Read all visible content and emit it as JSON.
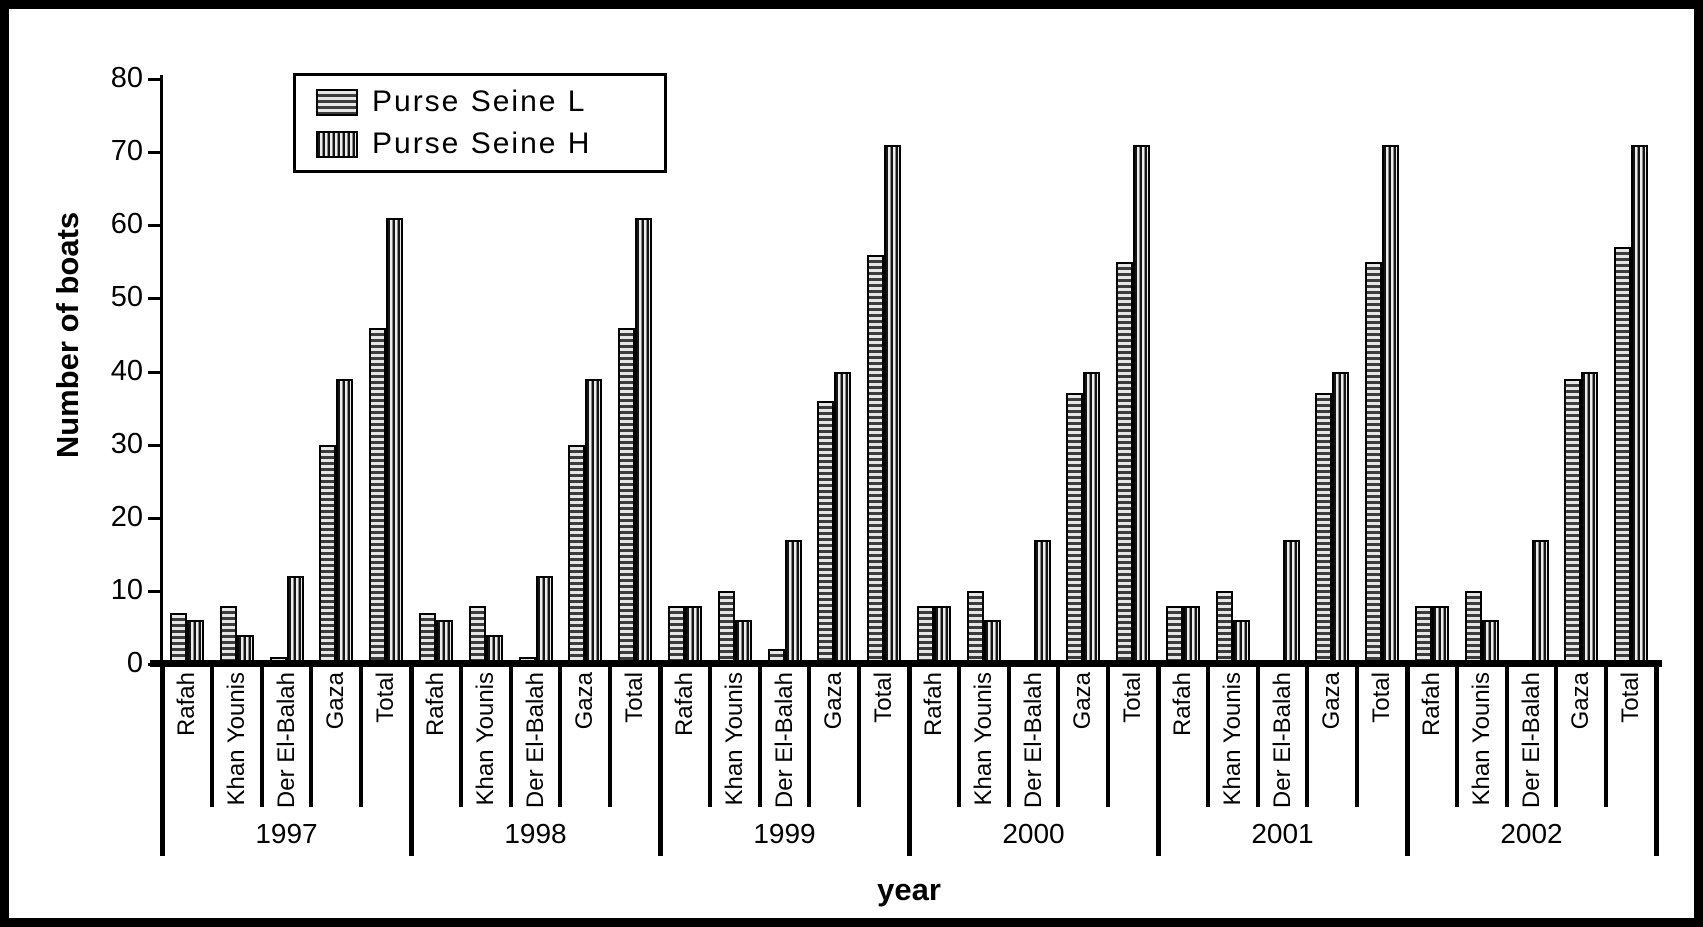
{
  "frame": {
    "background": "#ffffff",
    "border_color": "#000000",
    "bar_dark": "#3c3c3c",
    "bar_light": "#e6e6e6"
  },
  "chart_data": {
    "type": "bar",
    "title": "",
    "xlabel": "year",
    "ylabel": "Number of boats",
    "ylim": [
      0,
      80
    ],
    "yticks": [
      0,
      10,
      20,
      30,
      40,
      50,
      60,
      70,
      80
    ],
    "grid": false,
    "legend_position": "top-left-inside",
    "group_labels": [
      "1997",
      "1998",
      "1999",
      "2000",
      "2001",
      "2002"
    ],
    "categories": [
      "Rafah",
      "Khan Younis",
      "Der El-Balah",
      "Gaza",
      "Total"
    ],
    "series": [
      {
        "name": "Purse Seine L",
        "pattern": "horizontal-stripes",
        "values": [
          [
            7,
            8,
            1,
            30,
            46
          ],
          [
            7,
            8,
            1,
            30,
            46
          ],
          [
            8,
            10,
            2,
            36,
            56
          ],
          [
            8,
            10,
            0,
            37,
            55
          ],
          [
            8,
            10,
            0,
            37,
            55
          ],
          [
            8,
            10,
            0,
            39,
            57
          ]
        ]
      },
      {
        "name": "Purse Seine H",
        "pattern": "vertical-stripes",
        "values": [
          [
            6,
            4,
            12,
            39,
            61
          ],
          [
            6,
            4,
            12,
            39,
            61
          ],
          [
            8,
            6,
            17,
            40,
            71
          ],
          [
            8,
            6,
            17,
            40,
            71
          ],
          [
            8,
            6,
            17,
            40,
            71
          ],
          [
            8,
            6,
            17,
            40,
            71
          ]
        ]
      }
    ]
  }
}
